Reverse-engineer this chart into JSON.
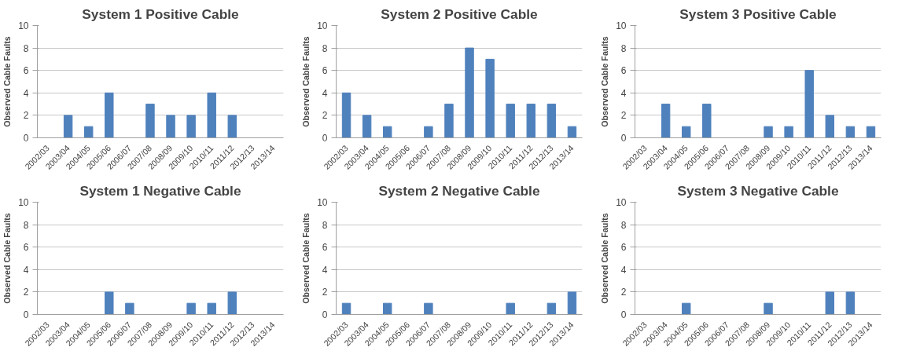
{
  "chart_data": [
    {
      "type": "bar",
      "title": "System 1 Positive Cable",
      "ylabel": "Observed Cable Faults",
      "categories": [
        "2002/03",
        "2003/04",
        "2004/05",
        "2005/06",
        "2006/07",
        "2007/08",
        "2008/09",
        "2009/10",
        "2010/11",
        "2011/12",
        "2012/13",
        "2013/14"
      ],
      "series": [
        {
          "color": "#4f81bd",
          "values": [
            0,
            2,
            1,
            4,
            0,
            3,
            2,
            2,
            4,
            2,
            0,
            0
          ]
        }
      ],
      "ylim": [
        0,
        10
      ],
      "yticks": [
        0,
        2,
        4,
        6,
        8,
        10
      ],
      "grid": "y"
    },
    {
      "type": "bar",
      "title": "System 2 Positive Cable",
      "ylabel": "Observed Cable Faults",
      "categories": [
        "2002/03",
        "2003/04",
        "2004/05",
        "2005/06",
        "2006/07",
        "2007/08",
        "2008/09",
        "2009/10",
        "2010/11",
        "2011/12",
        "2012/13",
        "2013/14"
      ],
      "series": [
        {
          "color": "#4f81bd",
          "values": [
            4,
            2,
            1,
            0,
            1,
            3,
            8,
            7,
            3,
            3,
            3,
            1
          ]
        }
      ],
      "ylim": [
        0,
        10
      ],
      "yticks": [
        0,
        2,
        4,
        6,
        8,
        10
      ],
      "grid": "y"
    },
    {
      "type": "bar",
      "title": "System 3 Positive Cable",
      "ylabel": "Observed Cable Faults",
      "categories": [
        "2002/03",
        "2003/04",
        "2004/05",
        "2005/06",
        "2006/07",
        "2007/08",
        "2008/09",
        "2009/10",
        "2010/11",
        "2011/12",
        "2012/13",
        "2013/14"
      ],
      "series": [
        {
          "color": "#4f81bd",
          "values": [
            0,
            3,
            1,
            3,
            0,
            0,
            1,
            1,
            6,
            2,
            1,
            1
          ]
        }
      ],
      "ylim": [
        0,
        10
      ],
      "yticks": [
        0,
        2,
        4,
        6,
        8,
        10
      ],
      "grid": "y"
    },
    {
      "type": "bar",
      "title": "System 1 Negative Cable",
      "ylabel": "Observed Cable Faults",
      "categories": [
        "2002/03",
        "2003/04",
        "2004/05",
        "2005/06",
        "2006/07",
        "2007/08",
        "2008/09",
        "2009/10",
        "2010/11",
        "2011/12",
        "2012/13",
        "2013/14"
      ],
      "series": [
        {
          "color": "#4f81bd",
          "values": [
            0,
            0,
            0,
            2,
            1,
            0,
            0,
            1,
            1,
            2,
            0,
            0
          ]
        }
      ],
      "ylim": [
        0,
        10
      ],
      "yticks": [
        0,
        2,
        4,
        6,
        8,
        10
      ],
      "grid": "y"
    },
    {
      "type": "bar",
      "title": "System 2 Negative Cable",
      "ylabel": "Observed Cable Faults",
      "categories": [
        "2002/03",
        "2003/04",
        "2004/05",
        "2005/06",
        "2006/07",
        "2007/08",
        "2008/09",
        "2009/10",
        "2010/11",
        "2011/12",
        "2012/13",
        "2013/14"
      ],
      "series": [
        {
          "color": "#4f81bd",
          "values": [
            1,
            0,
            1,
            0,
            1,
            0,
            0,
            0,
            1,
            0,
            1,
            2
          ]
        }
      ],
      "ylim": [
        0,
        10
      ],
      "yticks": [
        0,
        2,
        4,
        6,
        8,
        10
      ],
      "grid": "y"
    },
    {
      "type": "bar",
      "title": "System 3 Negative Cable",
      "ylabel": "Observed Cable Faults",
      "categories": [
        "2002/03",
        "2003/04",
        "2004/05",
        "2005/06",
        "2006/07",
        "2007/08",
        "2008/09",
        "2009/10",
        "2010/11",
        "2011/12",
        "2012/13",
        "2013/14"
      ],
      "series": [
        {
          "color": "#4f81bd",
          "values": [
            0,
            0,
            1,
            0,
            0,
            0,
            1,
            0,
            0,
            2,
            2,
            0
          ]
        }
      ],
      "ylim": [
        0,
        10
      ],
      "yticks": [
        0,
        2,
        4,
        6,
        8,
        10
      ],
      "grid": "y"
    }
  ]
}
